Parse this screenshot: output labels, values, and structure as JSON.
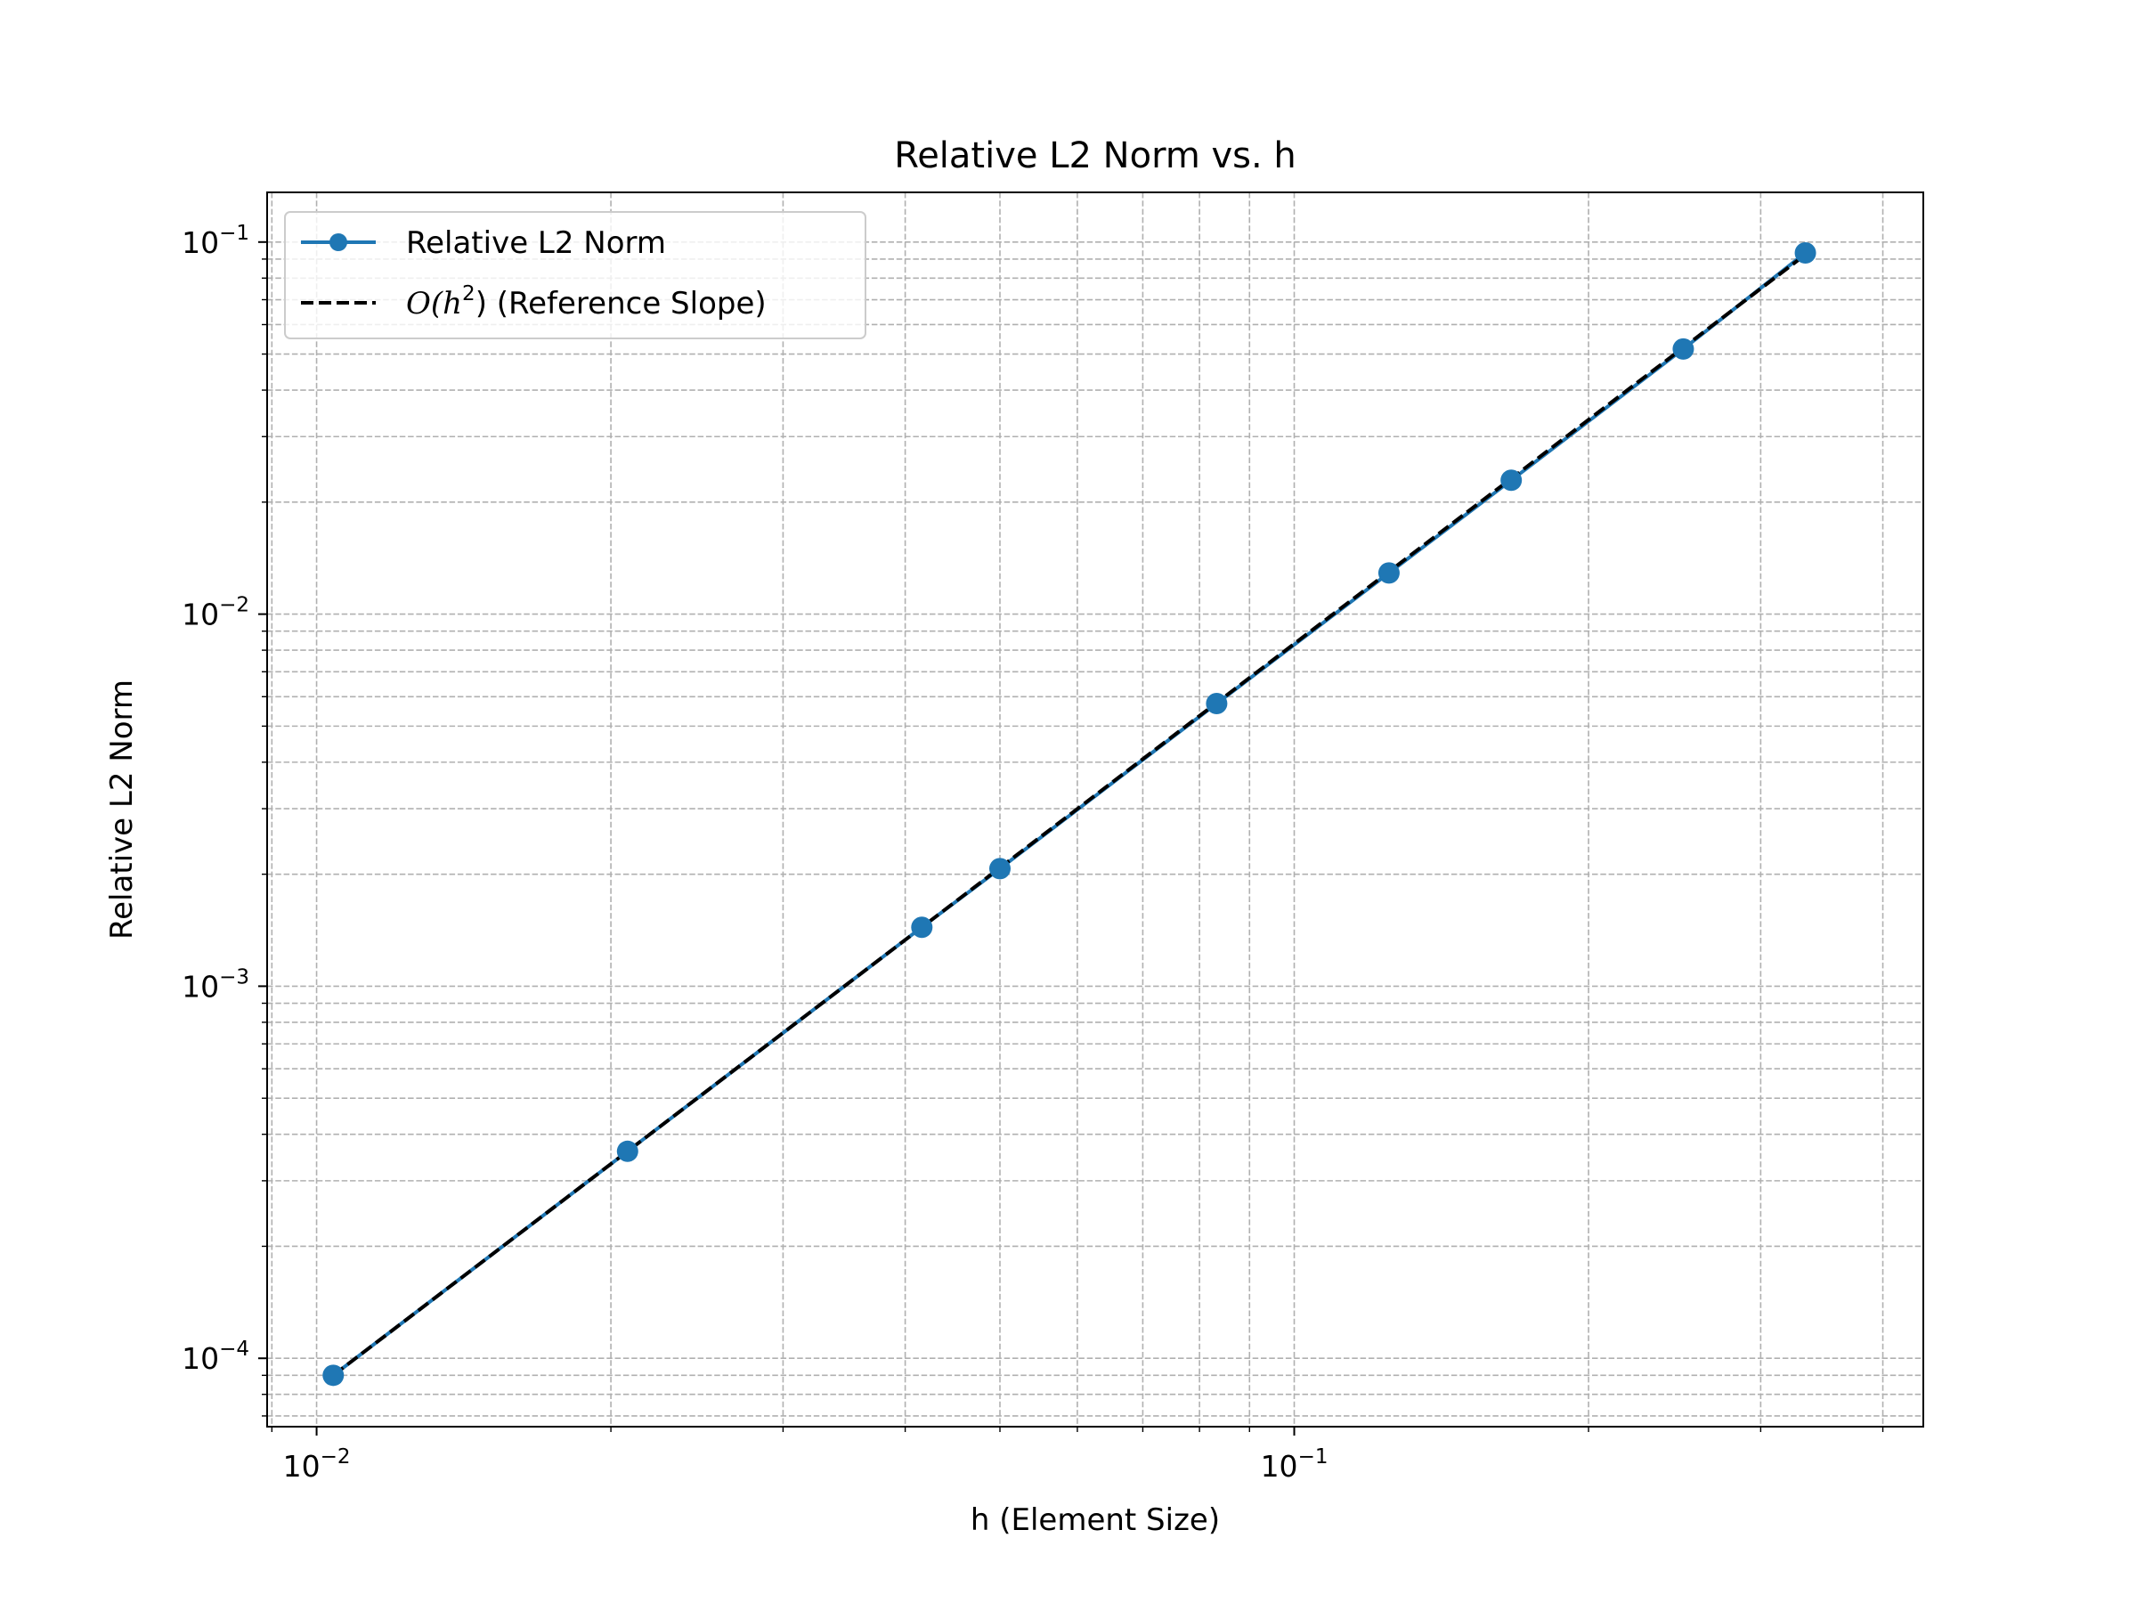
{
  "chart_data": {
    "type": "line",
    "title": "Relative L2 Norm vs. h",
    "xlabel": "h (Element Size)",
    "ylabel": "Relative L2 Norm",
    "xscale": "log",
    "yscale": "log",
    "xlim": [
      0.0089,
      0.44
    ],
    "ylim": [
      6.55e-05,
      0.136
    ],
    "grid": true,
    "grid_style": "dashed",
    "legend_position": "upper-left",
    "x_ticks": [
      {
        "value": 0.01,
        "base": "10",
        "exp": "−2"
      },
      {
        "value": 0.1,
        "base": "10",
        "exp": "−1"
      }
    ],
    "y_ticks": [
      {
        "value": 0.0001,
        "base": "10",
        "exp": "−4"
      },
      {
        "value": 0.001,
        "base": "10",
        "exp": "−3"
      },
      {
        "value": 0.01,
        "base": "10",
        "exp": "−2"
      },
      {
        "value": 0.1,
        "base": "10",
        "exp": "−1"
      }
    ],
    "series": [
      {
        "name": "Relative L2 Norm",
        "style": "solid-marker",
        "color": "#1f77b4",
        "x": [
          0.0104,
          0.0208,
          0.0416,
          0.05,
          0.0833,
          0.125,
          0.1667,
          0.25,
          0.3333
        ],
        "y": [
          9e-05,
          0.00036,
          0.00144,
          0.00207,
          0.00575,
          0.0129,
          0.0229,
          0.0516,
          0.0935
        ]
      },
      {
        "name_prefix": "O",
        "name_math": "(h",
        "name_sup": "2",
        "name_suffix": ") (Reference Slope)",
        "style": "dashed",
        "color": "#000000",
        "x": [
          0.0104,
          0.3333
        ],
        "y": [
          9e-05,
          0.0925
        ]
      }
    ]
  }
}
